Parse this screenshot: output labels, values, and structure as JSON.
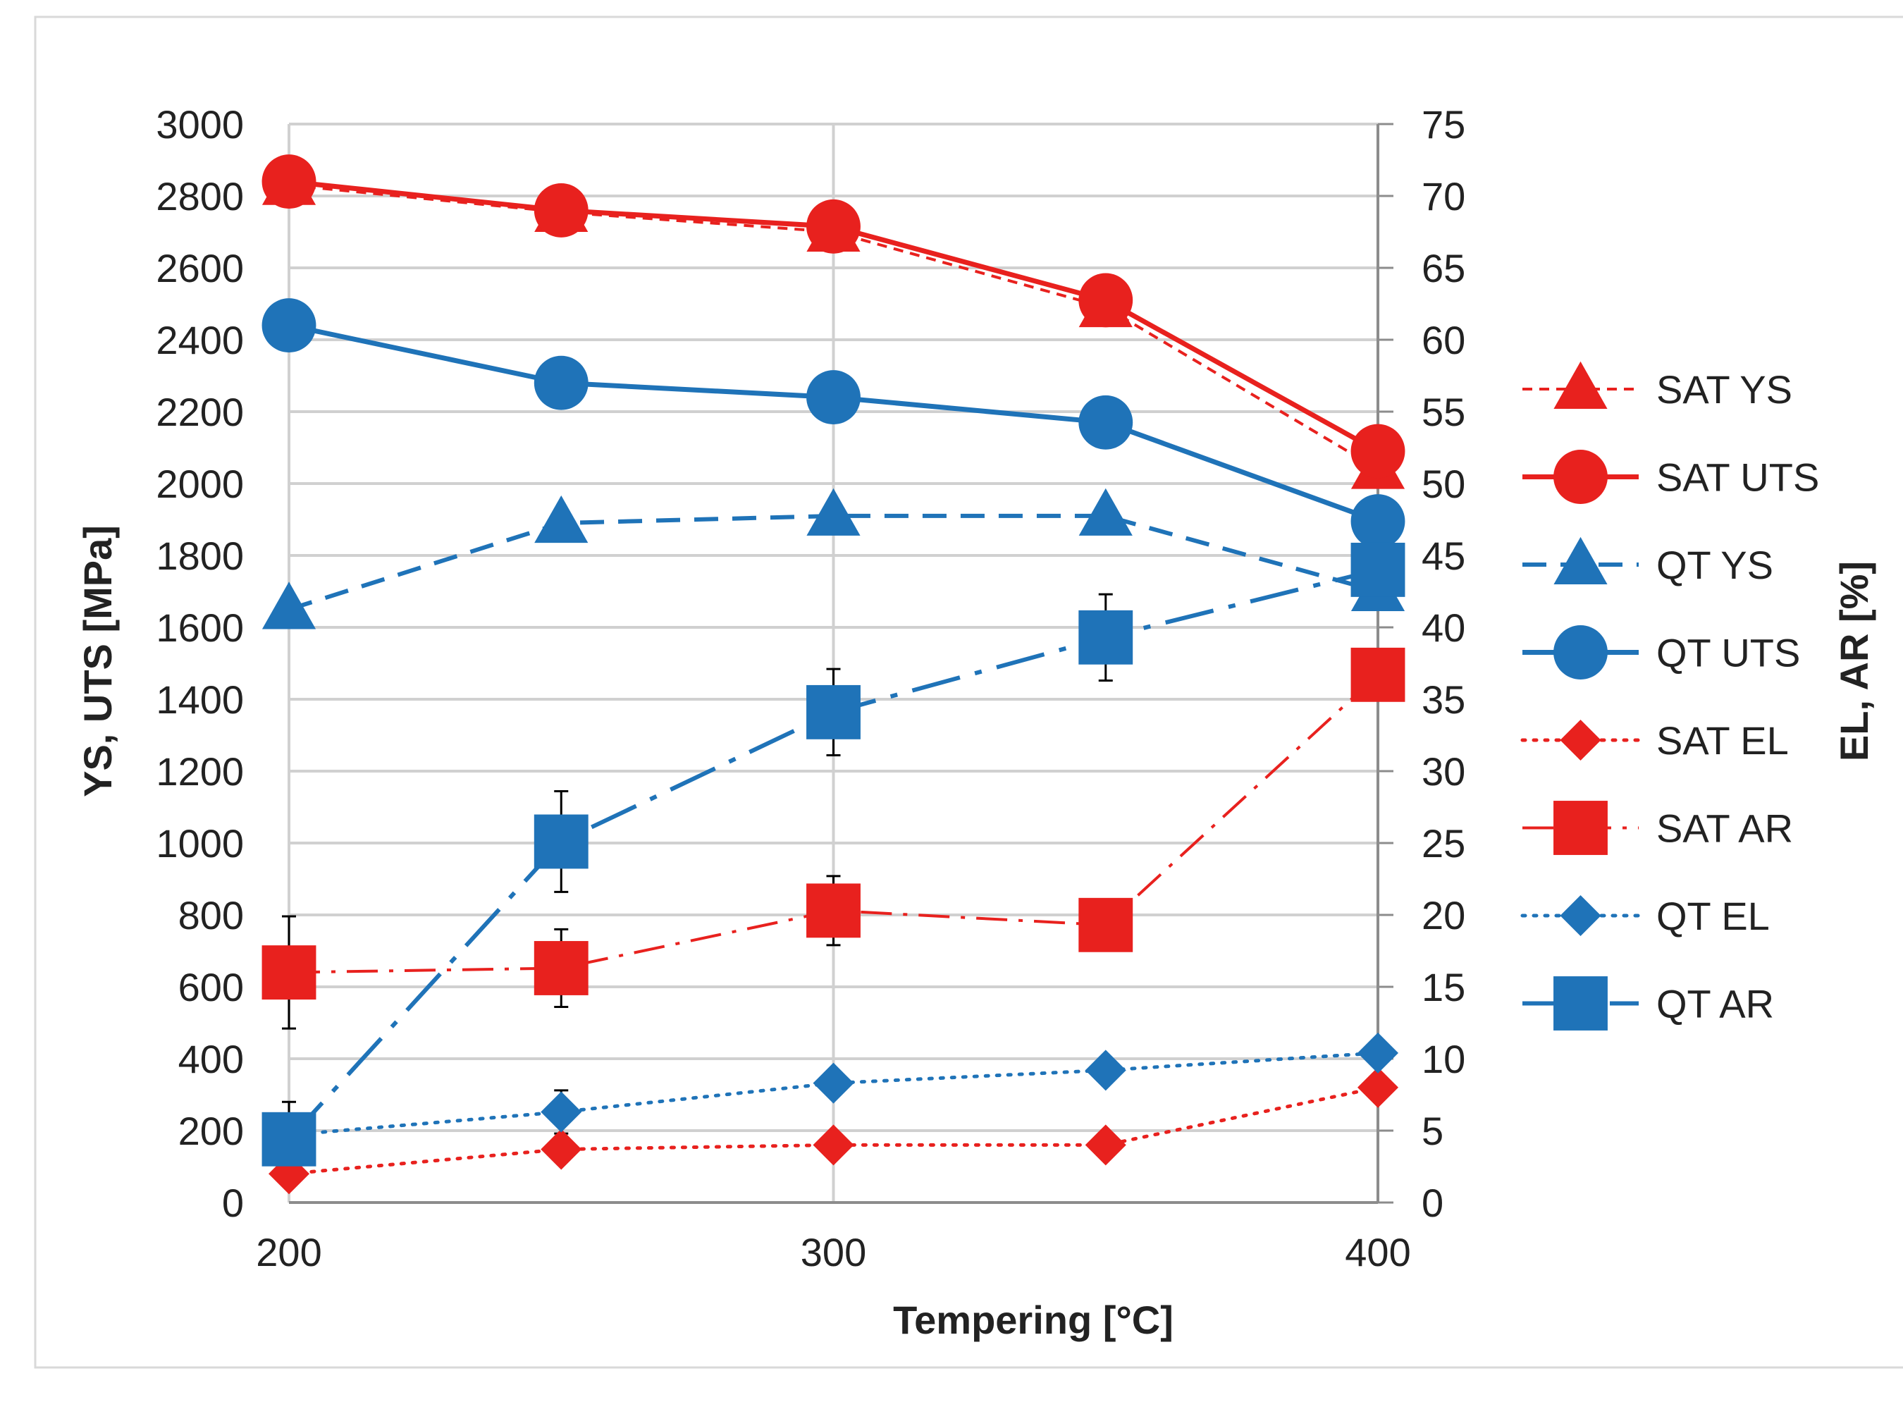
{
  "chart_data": {
    "type": "line",
    "title": "",
    "xlabel": "Tempering [°C]",
    "ylabel_left": "YS, UTS [MPa]",
    "ylabel_right": "EL, AR [%]",
    "x": [
      200,
      250,
      300,
      350,
      400
    ],
    "x_ticks": [
      "200",
      "300",
      "400"
    ],
    "xlim": [
      200,
      400
    ],
    "ylim_left": [
      0,
      3000
    ],
    "ylim_right": [
      0,
      75
    ],
    "y_ticks_left": [
      "0",
      "200",
      "400",
      "600",
      "800",
      "1000",
      "1200",
      "1400",
      "1600",
      "1800",
      "2000",
      "2200",
      "2400",
      "2600",
      "2800",
      "3000"
    ],
    "y_ticks_right": [
      "0",
      "5",
      "10",
      "15",
      "20",
      "25",
      "30",
      "35",
      "40",
      "45",
      "50",
      "55",
      "60",
      "65",
      "70",
      "75"
    ],
    "grid": true,
    "legend_position": "right",
    "series": [
      {
        "name": "SAT YS",
        "axis": "left",
        "color": "#E8211E",
        "dash": "dashed-short",
        "marker": "triangle",
        "values": [
          2830,
          2755,
          2700,
          2490,
          2040
        ]
      },
      {
        "name": "SAT UTS",
        "axis": "left",
        "color": "#E8211E",
        "dash": "solid",
        "marker": "circle",
        "values": [
          2840,
          2760,
          2715,
          2510,
          2090
        ]
      },
      {
        "name": "QT YS",
        "axis": "left",
        "color": "#1F73B8",
        "dash": "dashed",
        "marker": "triangle",
        "values": [
          1650,
          1890,
          1910,
          1910,
          1700
        ]
      },
      {
        "name": "QT UTS",
        "axis": "left",
        "color": "#1F73B8",
        "dash": "solid",
        "marker": "circle",
        "values": [
          2440,
          2280,
          2240,
          2170,
          1895
        ]
      },
      {
        "name": "SAT EL",
        "axis": "right",
        "color": "#E8211E",
        "dash": "dotted",
        "marker": "diamond",
        "values": [
          2.0,
          3.7,
          4.0,
          4.0,
          8.0
        ],
        "errors": [
          0,
          0.5,
          0,
          0,
          0
        ]
      },
      {
        "name": "SAT AR",
        "axis": "right",
        "color": "#E8211E",
        "dash": "dashdot",
        "marker": "square",
        "values": [
          16.0,
          16.3,
          20.3,
          19.3,
          36.7
        ],
        "errors": [
          3.9,
          2.7,
          2.4,
          1.6,
          1.5
        ]
      },
      {
        "name": "QT EL",
        "axis": "right",
        "color": "#1F73B8",
        "dash": "dotted",
        "marker": "diamond",
        "values": [
          4.7,
          6.3,
          8.3,
          9.2,
          10.4
        ],
        "errors": [
          0,
          1.5,
          0,
          0,
          0
        ]
      },
      {
        "name": "QT AR",
        "axis": "right",
        "color": "#1F73B8",
        "dash": "dashdot-long",
        "marker": "square",
        "values": [
          4.4,
          25.1,
          34.1,
          39.3,
          44.0
        ],
        "errors": [
          2.6,
          3.5,
          3.0,
          3.0,
          0
        ]
      }
    ]
  }
}
